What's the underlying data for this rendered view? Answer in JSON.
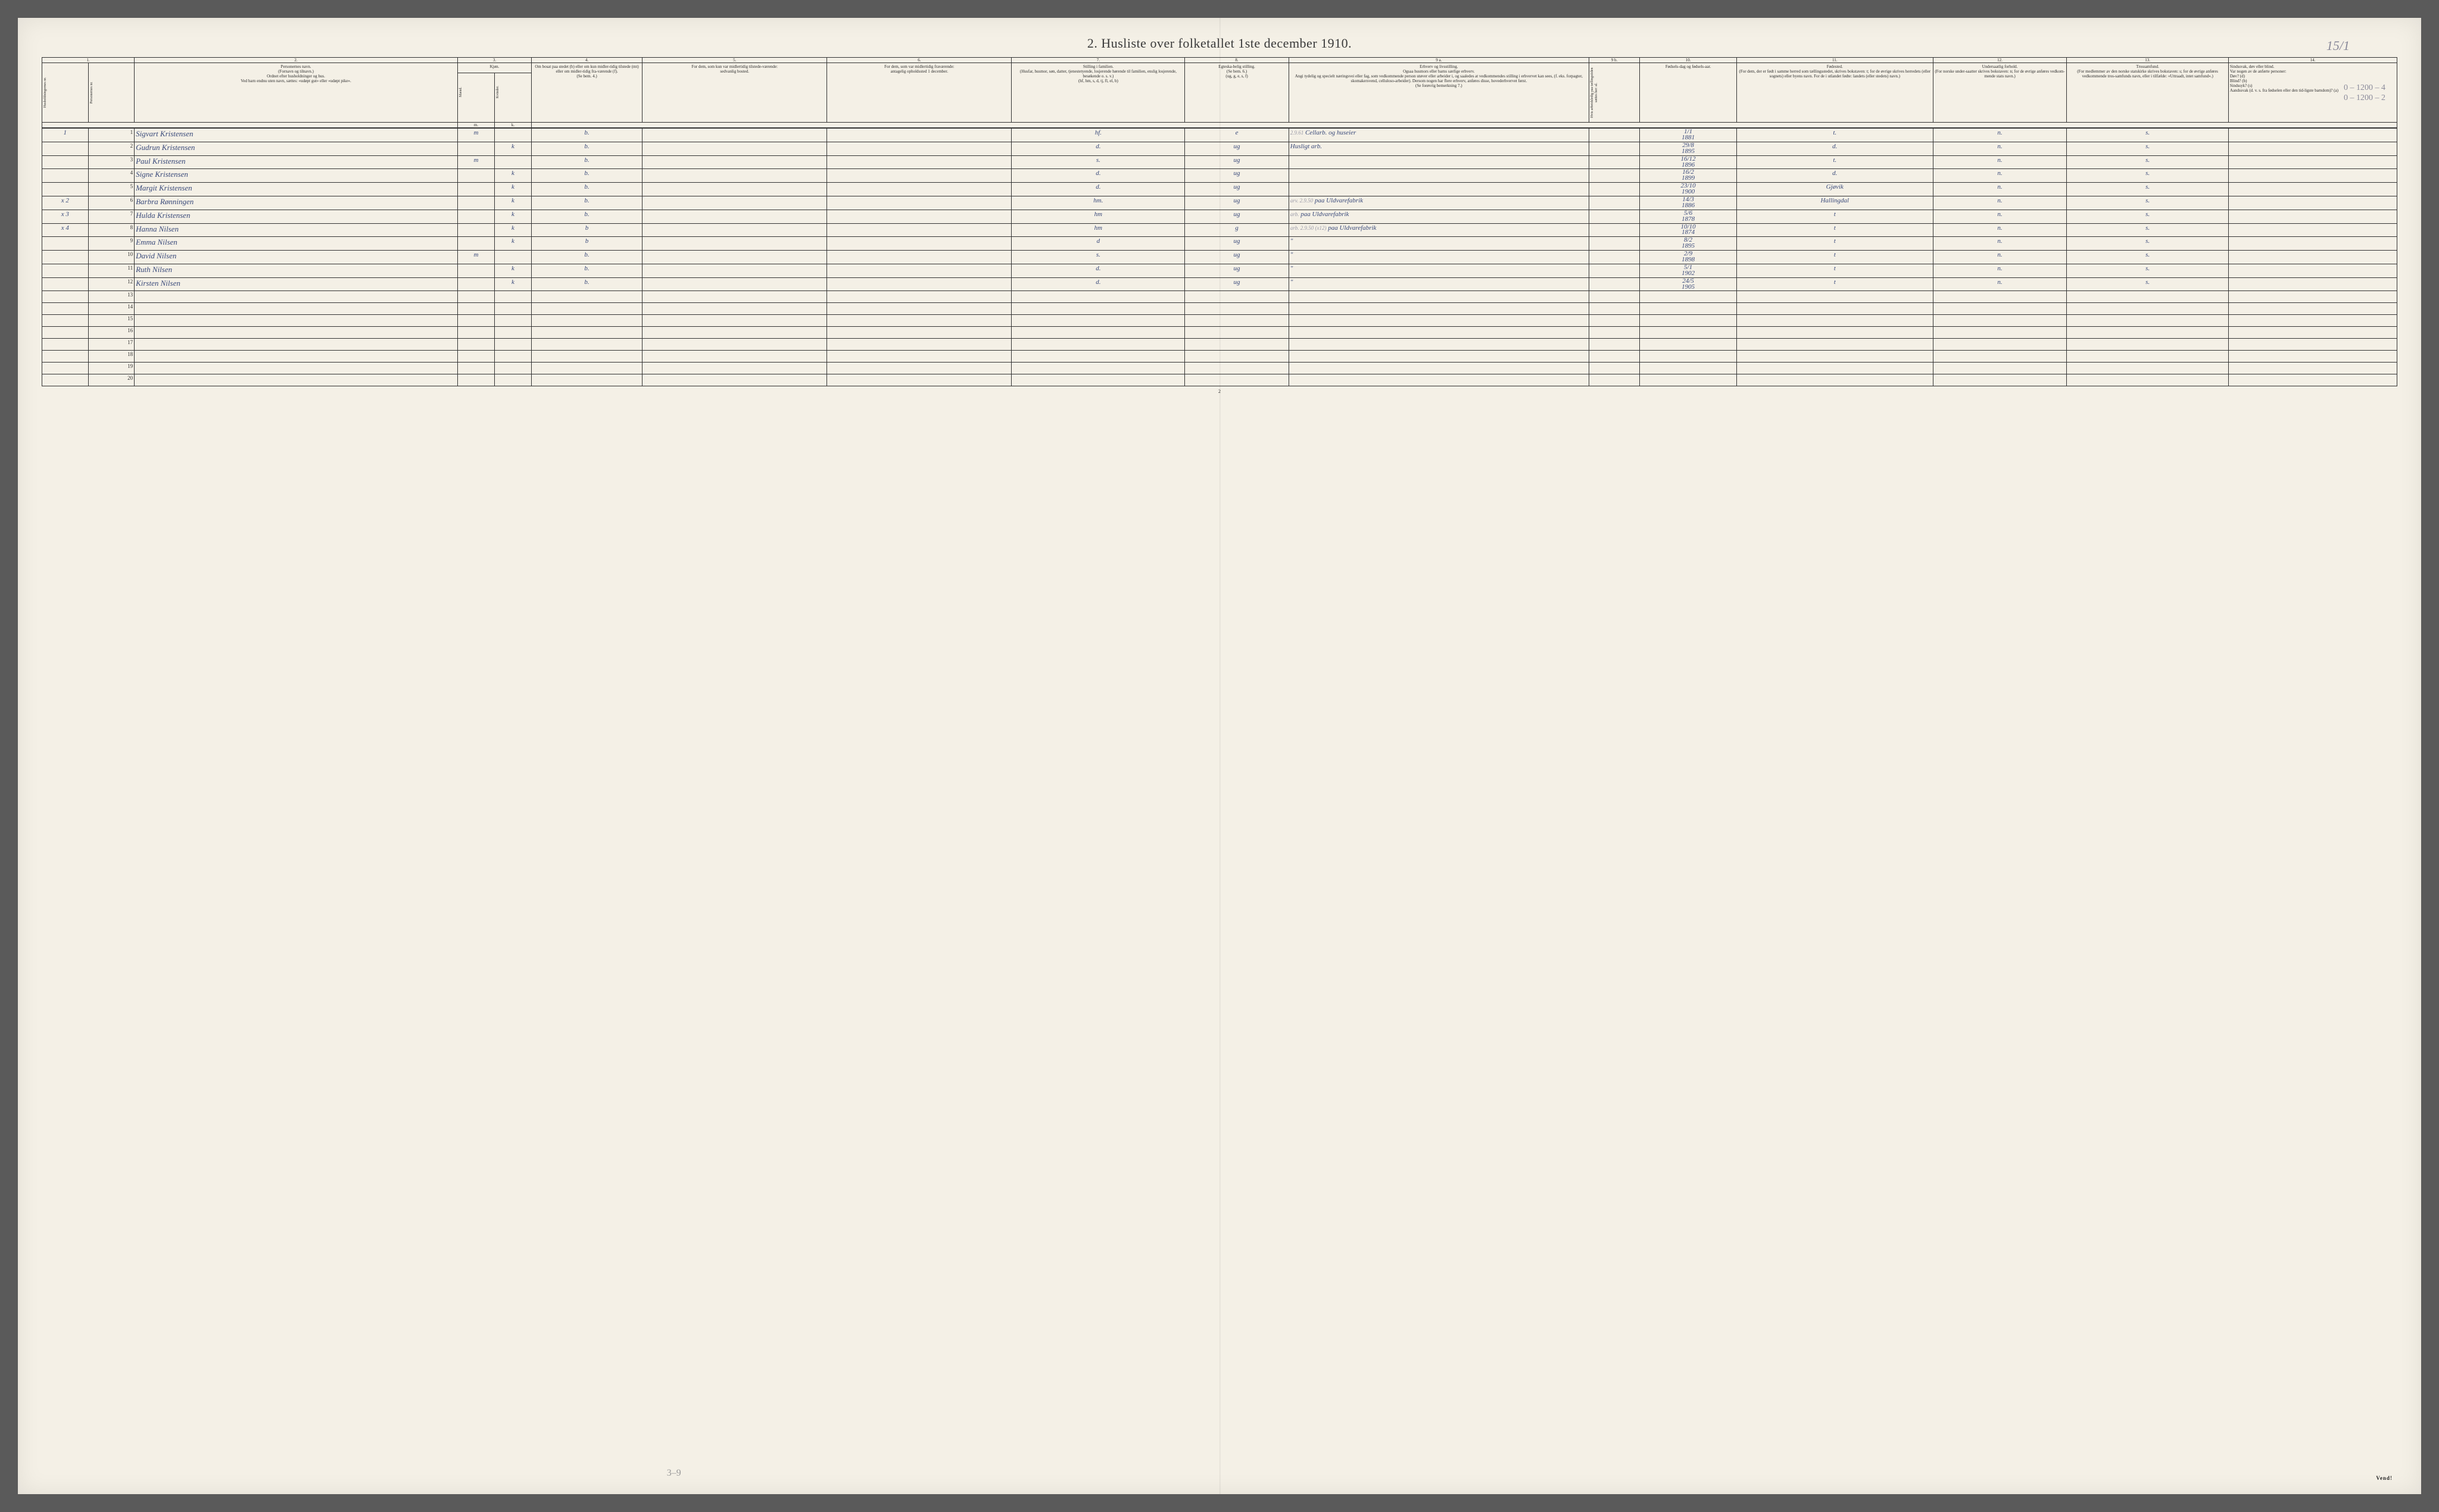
{
  "title": "2.  Husliste over folketallet 1ste december 1910.",
  "handwritten_top": "15/1",
  "handwritten_margin_right": [
    "0 – 1200 – 4",
    "0 – 1200 – 2"
  ],
  "colnums": [
    "1.",
    "2.",
    "3.",
    "4.",
    "5.",
    "6.",
    "7.",
    "8.",
    "9 a.",
    "9 b.",
    "10.",
    "11.",
    "12.",
    "13.",
    "14."
  ],
  "headers": {
    "c1a": "Husholdningernes nr.",
    "c1b": "Personernes nr.",
    "c2": "Personernes navn.\n(Fornavn og tilnavn.)\nOrdnet efter husholdninger og hus.\nVed barn endnu uten navn, sættes: «udøpt gut» eller «udøpt pike».",
    "c3": "Kjøn.",
    "c3a": "Mænd.",
    "c3b": "Kvinder.",
    "c3m": "m.",
    "c3k": "k.",
    "c4": "Om bosat paa stedet (b) eller om kun midler-tidig tilstede (mt) eller om midler-tidig fra-værende (f).\n(Se bem. 4.)",
    "c5": "For dem, som kun var midlertidig tilstede-værende:\nsedvanlig bosted.",
    "c6": "For dem, som var midlertidig fraværende:\nantagelig opholdssted 1 december.",
    "c7": "Stilling i familien.\n(Husfar, husmor, søn, datter, tjenestetyende, losjerende hørende til familien, enslig losjerende, besøkende o. s. v.)\n(hf, hm, s, d, tj, fl, el, b)",
    "c8": "Egteska-belig stilling.\n(Se bem. 6.)\n(ug, g, e, s, f)",
    "c9a": "Erhverv og livsstilling.\nOgsaa husmors eller barns særlige erhverv.\nAngi tydelig og specielt næringsvei eller fag, som vedkommende person utøver eller arbeider i, og saaledes at vedkommendes stilling i erhvervet kan sees, (f. eks. forpagter, skomakersvend, celluloso-arbeider). Dersom nogen har flere erhverv, anføres disse, hovederhvervet først.\n(Se forøvrig bemerkning 7.)",
    "c9b": "Hvis arbeidsledig paa tællingstiden sættes her: al.",
    "c10": "Fødsels-dag og fødsels-aar.",
    "c11": "Fødested.\n(For dem, der er født i samme herred som tællingsstedet, skrives bokstaven: t; for de øvrige skrives herredets (eller sognets) eller byens navn. For de i utlandet fødte: landets (eller stedets) navn.)",
    "c12": "Undersaatlig forhold.\n(For norske under-saatter skrives bokstaven: n; for de øvrige anføres vedkom-mende stats navn.)",
    "c13": "Trossamfund.\n(For medlemmer av den norske statskirke skrives bokstaven: s; for de øvrige anføres vedkommende tros-samfunds navn, eller i tilfælde: «Uttraadt, intet samfund».)",
    "c14": "Sindssvak, døv eller blind.\nVar nogen av de anførte personer:\nDøv?        (d)\nBlind?       (b)\nSindssyk?  (s)\nAandssvak (d. v. s. fra fødselen eller den tid-ligste barndom)? (a)"
  },
  "rows": [
    {
      "hh": "1",
      "p": "1",
      "name": "Sigvart Kristensen",
      "m": "m",
      "k": "",
      "res": "b.",
      "c5": "",
      "c6": "",
      "fam": "hf.",
      "marit": "e",
      "occ": "Cellarb. og huseier",
      "occnote": "2.9.61",
      "birth": "1/1\n1881",
      "place": "t.",
      "nat": "n.",
      "rel": "s.",
      "c14": ""
    },
    {
      "hh": "",
      "p": "2",
      "name": "Gudrun Kristensen",
      "m": "",
      "k": "k",
      "res": "b.",
      "c5": "",
      "c6": "",
      "fam": "d.",
      "marit": "ug",
      "occ": "Husligt arb.",
      "occnote": "",
      "birth": "29/8\n1895",
      "place": "d.",
      "nat": "n.",
      "rel": "s.",
      "c14": ""
    },
    {
      "hh": "",
      "p": "3",
      "name": "Paul Kristensen",
      "m": "m",
      "k": "",
      "res": "b.",
      "c5": "",
      "c6": "",
      "fam": "s.",
      "marit": "ug",
      "occ": "",
      "occnote": "",
      "birth": "16/12\n1896",
      "place": "t.",
      "nat": "n.",
      "rel": "s.",
      "c14": ""
    },
    {
      "hh": "",
      "p": "4",
      "name": "Signe Kristensen",
      "m": "",
      "k": "k",
      "res": "b.",
      "c5": "",
      "c6": "",
      "fam": "d.",
      "marit": "ug",
      "occ": "",
      "occnote": "",
      "birth": "16/2\n1899",
      "place": "d.",
      "nat": "n.",
      "rel": "s.",
      "c14": ""
    },
    {
      "hh": "",
      "p": "5",
      "name": "Margit Kristensen",
      "m": "",
      "k": "k",
      "res": "b.",
      "c5": "",
      "c6": "",
      "fam": "d.",
      "marit": "ug",
      "occ": "",
      "occnote": "",
      "birth": "23/10\n1900",
      "place": "Gjøvik",
      "nat": "n.",
      "rel": "s.",
      "c14": ""
    },
    {
      "hh": "x 2",
      "p": "6",
      "name": "Barbra Rønningen",
      "m": "",
      "k": "k",
      "res": "b.",
      "c5": "",
      "c6": "",
      "fam": "hm.",
      "marit": "ug",
      "occ": "paa Uldvarefabrik",
      "occnote": "arv. 2.9.50",
      "birth": "14/3\n1886",
      "place": "Hallingdal",
      "nat": "n.",
      "rel": "s.",
      "c14": ""
    },
    {
      "hh": "x 3",
      "p": "7",
      "name": "Hulda Kristensen",
      "m": "",
      "k": "k",
      "res": "b.",
      "c5": "",
      "c6": "",
      "fam": "hm",
      "marit": "ug",
      "occ": "paa Uldvarefabrik",
      "occnote": "arb.",
      "birth": "5/6\n1878",
      "place": "t",
      "nat": "n.",
      "rel": "s.",
      "c14": ""
    },
    {
      "hh": "x 4",
      "p": "8",
      "name": "Hanna Nilsen",
      "m": "",
      "k": "k",
      "res": "b",
      "c5": "",
      "c6": "",
      "fam": "hm",
      "marit": "g",
      "occ": "paa Uldvarefabrik",
      "occnote": "arb. 2.9.50 (x12)",
      "birth": "10/10\n1874",
      "place": "t",
      "nat": "n.",
      "rel": "s.",
      "c14": ""
    },
    {
      "hh": "",
      "p": "9",
      "name": "Emma Nilsen",
      "m": "",
      "k": "k",
      "res": "b",
      "c5": "",
      "c6": "",
      "fam": "d",
      "marit": "ug",
      "occ": "\"",
      "occnote": "",
      "birth": "8/2\n1895",
      "place": "t",
      "nat": "n.",
      "rel": "s.",
      "c14": ""
    },
    {
      "hh": "",
      "p": "10",
      "name": "David Nilsen",
      "m": "m",
      "k": "",
      "res": "b.",
      "c5": "",
      "c6": "",
      "fam": "s.",
      "marit": "ug",
      "occ": "\"",
      "occnote": "",
      "birth": "2/9\n1898",
      "place": "t",
      "nat": "n.",
      "rel": "s.",
      "c14": ""
    },
    {
      "hh": "",
      "p": "11",
      "name": "Ruth Nilsen",
      "m": "",
      "k": "k",
      "res": "b.",
      "c5": "",
      "c6": "",
      "fam": "d.",
      "marit": "ug",
      "occ": "\"",
      "occnote": "",
      "birth": "5/1\n1902",
      "place": "t",
      "nat": "n.",
      "rel": "s.",
      "c14": ""
    },
    {
      "hh": "",
      "p": "12",
      "name": "Kirsten Nilsen",
      "m": "",
      "k": "k",
      "res": "b.",
      "c5": "",
      "c6": "",
      "fam": "d.",
      "marit": "ug",
      "occ": "\"",
      "occnote": "",
      "birth": "24/5\n1905",
      "place": "t",
      "nat": "n.",
      "rel": "s.",
      "c14": ""
    }
  ],
  "empty_rows": [
    13,
    14,
    15,
    16,
    17,
    18,
    19,
    20
  ],
  "page_number": "2",
  "vend": "Vend!",
  "pencil_bottom": "3–9",
  "colors": {
    "paper": "#f4f0e6",
    "ink_print": "#2a2a2a",
    "ink_hand_blue": "#3a4a7a",
    "ink_hand_pencil": "#9a9a9a",
    "border": "#333333"
  },
  "colwidths_pct": [
    2.0,
    2.0,
    14.0,
    1.6,
    1.6,
    4.8,
    8.0,
    8.0,
    7.5,
    4.5,
    13.0,
    2.2,
    4.2,
    8.5,
    5.8,
    7.0,
    7.3
  ]
}
